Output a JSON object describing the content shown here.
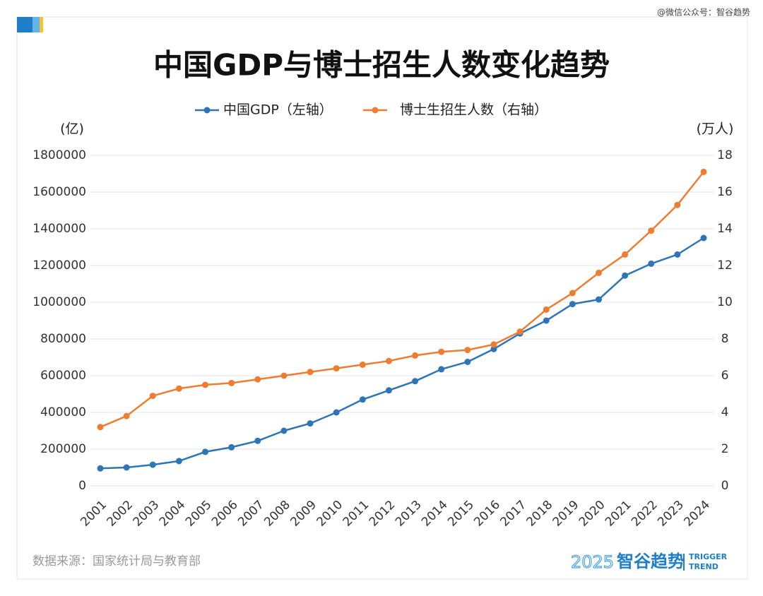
{
  "watermark": "@微信公众号：智谷趋势",
  "source": "数据来源：国家统计局与教育部",
  "brand": {
    "year": "2025",
    "name": "智谷趋势",
    "en1": "TRIGGER",
    "en2": "TREND"
  },
  "chart_data": {
    "type": "line",
    "title": "中国GDP与博士招生人数变化趋势",
    "y_label": "(亿)",
    "y2_label": "(万人)",
    "categories": [
      "2001",
      "2002",
      "2003",
      "2004",
      "2005",
      "2006",
      "2007",
      "2008",
      "2009",
      "2010",
      "2011",
      "2012",
      "2013",
      "2014",
      "2015",
      "2016",
      "2017",
      "2018",
      "2019",
      "2020",
      "2021",
      "2022",
      "2023",
      "2024"
    ],
    "series": [
      {
        "name": "中国GDP（左轴）",
        "color": "#2e75b6",
        "axis": "y",
        "values": [
          95000,
          100000,
          115000,
          135000,
          185000,
          210000,
          245000,
          300000,
          340000,
          400000,
          470000,
          520000,
          570000,
          635000,
          675000,
          745000,
          830000,
          900000,
          990000,
          1015000,
          1145000,
          1210000,
          1260000,
          1350000
        ]
      },
      {
        "name": "博士生招生人数（右轴）",
        "color": "#ed7d31",
        "axis": "y2",
        "values": [
          3.2,
          3.8,
          4.9,
          5.3,
          5.5,
          5.6,
          5.8,
          6.0,
          6.2,
          6.4,
          6.6,
          6.8,
          7.1,
          7.3,
          7.4,
          7.7,
          8.4,
          9.6,
          10.5,
          11.6,
          12.6,
          13.9,
          15.3,
          17.1
        ]
      }
    ],
    "ylim": [
      0,
      1800000
    ],
    "yticks": [
      0,
      200000,
      400000,
      600000,
      800000,
      1000000,
      1200000,
      1400000,
      1600000,
      1800000
    ],
    "y2lim": [
      0,
      18
    ],
    "y2ticks": [
      0,
      2,
      4,
      6,
      8,
      10,
      12,
      14,
      16,
      18
    ],
    "grid": true,
    "legend": "top"
  }
}
